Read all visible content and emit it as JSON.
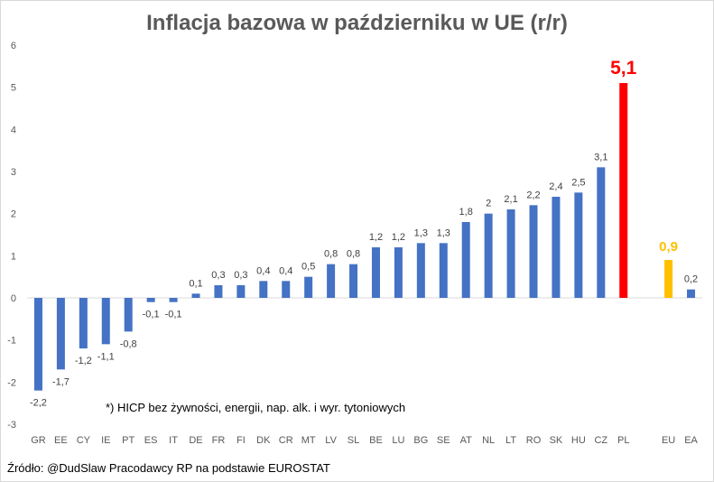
{
  "title": "Inflacja bazowa w październiku w UE (r/r)",
  "footnote": "*) HICP bez żywności, energii, nap. alk. i wyr. tytoniowych",
  "source": "Źródło: @DudSlaw Pracodawcy RP na podstawie EUROSTAT",
  "colors": {
    "default": "#4472c4",
    "highlight": "#ff0000",
    "eu": "#ffc000",
    "axis": "#595959",
    "grid": "#d9d9d9"
  },
  "chart_data": {
    "type": "bar",
    "title": "Inflacja bazowa w październiku w UE (r/r)",
    "ylim": [
      -3,
      6
    ],
    "yticks": [
      "-3",
      "-2",
      "-1",
      "0",
      "1",
      "2",
      "3",
      "4",
      "5",
      "6"
    ],
    "grid": false,
    "legend": "none",
    "categories": [
      "GR",
      "EE",
      "CY",
      "IE",
      "PT",
      "ES",
      "IT",
      "DE",
      "FR",
      "FI",
      "DK",
      "CR",
      "MT",
      "LV",
      "SL",
      "BE",
      "LU",
      "BG",
      "SE",
      "AT",
      "NL",
      "LT",
      "RO",
      "SK",
      "HU",
      "CZ",
      "PL",
      "",
      "EU",
      "EA"
    ],
    "values": [
      -2.2,
      -1.7,
      -1.2,
      -1.1,
      -0.8,
      -0.1,
      -0.1,
      0.1,
      0.3,
      0.3,
      0.4,
      0.4,
      0.5,
      0.8,
      0.8,
      1.2,
      1.2,
      1.3,
      1.3,
      1.8,
      2,
      2.1,
      2.2,
      2.4,
      2.5,
      3.1,
      5.1,
      null,
      0.9,
      0.2
    ],
    "labels": [
      "-2,2",
      "-1,7",
      "-1,2",
      "-1,1",
      "-0,8",
      "-0,1",
      "-0,1",
      "0,1",
      "0,3",
      "0,3",
      "0,4",
      "0,4",
      "0,5",
      "0,8",
      "0,8",
      "1,2",
      "1,2",
      "1,3",
      "1,3",
      "1,8",
      "2",
      "2,1",
      "2,2",
      "2,4",
      "2,5",
      "3,1",
      "5,1",
      "",
      "0,9",
      "0,2"
    ],
    "bar_colors": [
      "default",
      "default",
      "default",
      "default",
      "default",
      "default",
      "default",
      "default",
      "default",
      "default",
      "default",
      "default",
      "default",
      "default",
      "default",
      "default",
      "default",
      "default",
      "default",
      "default",
      "default",
      "default",
      "default",
      "default",
      "default",
      "default",
      "highlight",
      "default",
      "eu",
      "default"
    ]
  }
}
